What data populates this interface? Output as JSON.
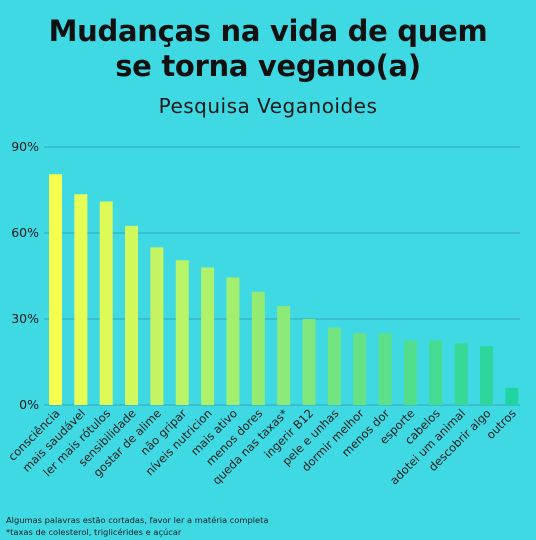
{
  "title_lines": [
    "Mudanças na vida de quem",
    "se torna vegano(a)"
  ],
  "subtitle": "Pesquisa Veganoides",
  "footnotes": [
    "Algumas palavras estão cortadas, favor ler a matéria completa",
    "*taxas de colesterol, triglicérides e açúcar"
  ],
  "chart_data": {
    "type": "bar",
    "title": "Mudanças na vida de quem se torna vegano(a)",
    "subtitle": "Pesquisa Veganoides",
    "categories": [
      "consciência",
      "mais saudável",
      "ler mais rótulos",
      "sensibilidade",
      "gostar de alime",
      "não gripar",
      "níveis nutricion",
      "mais ativo",
      "menos dores",
      "queda nas taxas*",
      "ingerir B12",
      "pele e unhas",
      "dormir melhor",
      "menos dor",
      "esporte",
      "cabelos",
      "adotei um animal",
      "descobrir algo",
      "outros"
    ],
    "values": [
      80.5,
      73.5,
      71,
      62.5,
      55,
      50.5,
      48,
      44.5,
      39.5,
      34.5,
      30,
      27,
      25,
      25,
      22.5,
      22.5,
      21.5,
      20.5,
      6
    ],
    "y_ticks": [
      "0%",
      "30%",
      "60%",
      "90%"
    ],
    "y_tick_values": [
      0,
      30,
      60,
      90
    ],
    "ylim": [
      0,
      90
    ],
    "grid": true,
    "colors": {
      "start": "#f4ff50",
      "end": "#21d49f",
      "grid": "#33a7bb",
      "text": "#1a1a1a"
    }
  }
}
